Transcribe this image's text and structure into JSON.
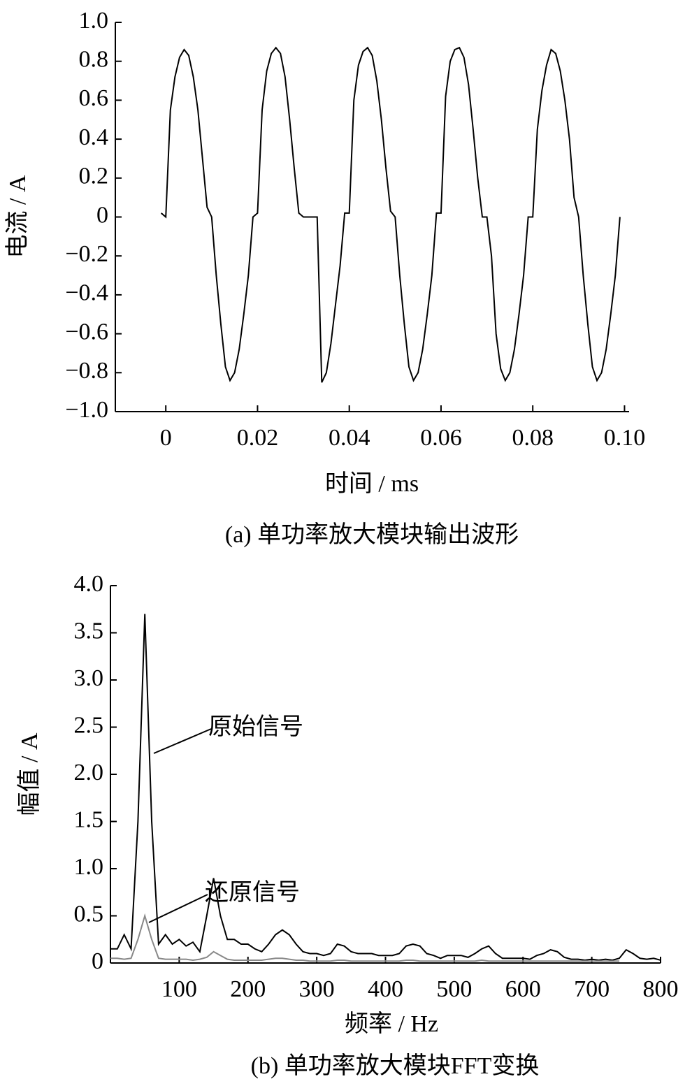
{
  "chart_data": [
    {
      "type": "line",
      "caption": "(a)  单功率放大模块输出波形",
      "xlabel": "时间 / ms",
      "ylabel": "电流 / A",
      "xlim": [
        -0.011,
        0.101
      ],
      "ylim": [
        -1,
        1
      ],
      "xticks": [
        0,
        0.02,
        0.04,
        0.06,
        0.08,
        {
          "value": 0.1,
          "label": "0.10"
        }
      ],
      "yticks": [
        {
          "value": 1,
          "label": "1.0"
        },
        0.8,
        0.6,
        0.4,
        0.2,
        0,
        {
          "value": -0.2,
          "label": "−0.2"
        },
        {
          "value": -0.4,
          "label": "−0.4"
        },
        {
          "value": -0.6,
          "label": "−0.6"
        },
        {
          "value": -0.8,
          "label": "−0.8"
        },
        {
          "value": -1,
          "label": "−1.0"
        }
      ],
      "x": [
        -0.001,
        0,
        0.001,
        0.002,
        0.003,
        0.004,
        0.005,
        0.006,
        0.007,
        0.008,
        0.009,
        0.01,
        0.011,
        0.012,
        0.013,
        0.014,
        0.015,
        0.016,
        0.017,
        0.018,
        0.019,
        0.02,
        0.021,
        0.022,
        0.023,
        0.024,
        0.025,
        0.026,
        0.027,
        0.028,
        0.029,
        0.03,
        0.031,
        0.032,
        0.033,
        0.034,
        0.035,
        0.036,
        0.037,
        0.038,
        0.039,
        0.04,
        0.041,
        0.042,
        0.043,
        0.044,
        0.045,
        0.046,
        0.047,
        0.048,
        0.049,
        0.05,
        0.051,
        0.052,
        0.053,
        0.054,
        0.055,
        0.056,
        0.057,
        0.058,
        0.059,
        0.06,
        0.061,
        0.062,
        0.063,
        0.064,
        0.065,
        0.066,
        0.067,
        0.068,
        0.069,
        0.07,
        0.071,
        0.072,
        0.073,
        0.074,
        0.075,
        0.076,
        0.077,
        0.078,
        0.079,
        0.08,
        0.081,
        0.082,
        0.083,
        0.084,
        0.085,
        0.086,
        0.087,
        0.088,
        0.089,
        0.09,
        0.091,
        0.092,
        0.093,
        0.094,
        0.095,
        0.096,
        0.097,
        0.098,
        0.099
      ],
      "series": [
        {
          "color": "#000000",
          "values": [
            0.02,
            0,
            0.55,
            0.72,
            0.82,
            0.86,
            0.83,
            0.72,
            0.55,
            0.3,
            0.05,
            0,
            -0.3,
            -0.55,
            -0.77,
            -0.84,
            -0.8,
            -0.68,
            -0.5,
            -0.3,
            0,
            0.02,
            0.55,
            0.75,
            0.84,
            0.87,
            0.84,
            0.72,
            0.5,
            0.25,
            0.02,
            0,
            0,
            0,
            0,
            -0.85,
            -0.8,
            -0.65,
            -0.45,
            -0.25,
            0.02,
            0.02,
            0.6,
            0.78,
            0.85,
            0.87,
            0.83,
            0.7,
            0.5,
            0.25,
            0.03,
            0,
            -0.3,
            -0.55,
            -0.77,
            -0.84,
            -0.8,
            -0.68,
            -0.5,
            -0.3,
            0.02,
            0.02,
            0.62,
            0.8,
            0.86,
            0.87,
            0.82,
            0.68,
            0.45,
            0.2,
            0,
            0,
            -0.2,
            -0.6,
            -0.78,
            -0.84,
            -0.8,
            -0.68,
            -0.5,
            -0.3,
            0,
            0,
            0.45,
            0.65,
            0.78,
            0.86,
            0.84,
            0.75,
            0.6,
            0.4,
            0.1,
            0,
            -0.3,
            -0.55,
            -0.77,
            -0.84,
            -0.8,
            -0.68,
            -0.5,
            -0.3,
            0
          ]
        }
      ]
    },
    {
      "type": "line",
      "caption": "(b) 单功率放大模块FFT变换",
      "xlabel": "频率 / Hz",
      "ylabel": "幅值 / A",
      "xlim": [
        0,
        800
      ],
      "ylim": [
        0,
        4
      ],
      "xticks": [
        100,
        200,
        300,
        400,
        500,
        600,
        700,
        800
      ],
      "yticks": [
        0,
        0.5,
        {
          "value": 1,
          "label": "1.0"
        },
        1.5,
        {
          "value": 2,
          "label": "2.0"
        },
        2.5,
        {
          "value": 3,
          "label": "3.0"
        },
        3.5,
        {
          "value": 4,
          "label": "4.0"
        }
      ],
      "x": [
        0,
        10,
        20,
        30,
        40,
        50,
        60,
        70,
        80,
        90,
        100,
        110,
        120,
        130,
        140,
        150,
        160,
        170,
        180,
        190,
        200,
        210,
        220,
        230,
        240,
        250,
        260,
        270,
        280,
        290,
        300,
        310,
        320,
        330,
        340,
        350,
        360,
        370,
        380,
        390,
        400,
        410,
        420,
        430,
        440,
        450,
        460,
        470,
        480,
        490,
        500,
        510,
        520,
        530,
        540,
        550,
        560,
        570,
        580,
        590,
        600,
        610,
        620,
        630,
        640,
        650,
        660,
        670,
        680,
        690,
        700,
        710,
        720,
        730,
        740,
        750,
        760,
        770,
        780,
        790,
        800
      ],
      "series": [
        {
          "name": "原始信号",
          "color": "#000000",
          "values": [
            0.15,
            0.15,
            0.3,
            0.15,
            1.5,
            3.7,
            1.5,
            0.2,
            0.3,
            0.2,
            0.25,
            0.18,
            0.22,
            0.12,
            0.5,
            0.9,
            0.5,
            0.25,
            0.25,
            0.2,
            0.2,
            0.15,
            0.12,
            0.2,
            0.3,
            0.35,
            0.3,
            0.2,
            0.12,
            0.1,
            0.1,
            0.08,
            0.1,
            0.2,
            0.18,
            0.12,
            0.1,
            0.1,
            0.1,
            0.08,
            0.08,
            0.08,
            0.1,
            0.18,
            0.2,
            0.18,
            0.1,
            0.08,
            0.05,
            0.08,
            0.08,
            0.08,
            0.06,
            0.1,
            0.15,
            0.18,
            0.1,
            0.05,
            0.05,
            0.05,
            0.05,
            0.04,
            0.08,
            0.1,
            0.14,
            0.12,
            0.06,
            0.04,
            0.04,
            0.03,
            0.04,
            0.03,
            0.04,
            0.03,
            0.05,
            0.14,
            0.1,
            0.05,
            0.04,
            0.05,
            0.03
          ]
        },
        {
          "name": "还原信号",
          "color": "#888888",
          "values": [
            0.05,
            0.05,
            0.04,
            0.05,
            0.25,
            0.5,
            0.25,
            0.05,
            0.04,
            0.04,
            0.04,
            0.04,
            0.03,
            0.04,
            0.06,
            0.12,
            0.08,
            0.04,
            0.03,
            0.03,
            0.03,
            0.03,
            0.03,
            0.04,
            0.05,
            0.05,
            0.04,
            0.03,
            0.03,
            0.02,
            0.02,
            0.02,
            0.02,
            0.03,
            0.03,
            0.02,
            0.02,
            0.02,
            0.02,
            0.02,
            0.02,
            0.02,
            0.02,
            0.03,
            0.03,
            0.02,
            0.02,
            0.02,
            0.02,
            0.02,
            0.02,
            0.02,
            0.02,
            0.02,
            0.03,
            0.02,
            0.02,
            0.02,
            0.02,
            0.02,
            0.02,
            0.02,
            0.02,
            0.02,
            0.02,
            0.02,
            0.02,
            0.02,
            0.02,
            0.02,
            0.02,
            0.02,
            0.02,
            0.02,
            0.02,
            null,
            null,
            null,
            null,
            null,
            null
          ]
        }
      ]
    }
  ]
}
